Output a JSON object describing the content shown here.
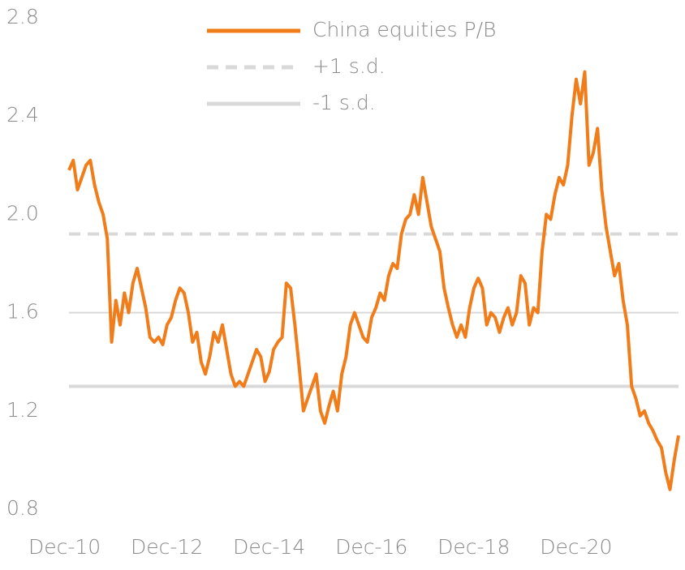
{
  "chart_data": {
    "type": "line",
    "categories": [
      "Dec-10",
      null,
      null,
      null,
      null,
      null,
      null,
      null,
      null,
      null,
      null,
      null,
      null,
      null,
      null,
      null,
      null,
      null,
      null,
      null,
      null,
      null,
      null,
      null,
      "Dec-12",
      null,
      null,
      null,
      null,
      null,
      null,
      null,
      null,
      null,
      null,
      null,
      null,
      null,
      null,
      null,
      null,
      null,
      null,
      null,
      null,
      null,
      null,
      null,
      "Dec-14",
      null,
      null,
      null,
      null,
      null,
      null,
      null,
      null,
      null,
      null,
      null,
      null,
      null,
      null,
      null,
      null,
      null,
      null,
      null,
      null,
      null,
      null,
      null,
      "Dec-16",
      null,
      null,
      null,
      null,
      null,
      null,
      null,
      null,
      null,
      null,
      null,
      null,
      null,
      null,
      null,
      null,
      null,
      null,
      null,
      null,
      null,
      null,
      null,
      "Dec-18",
      null,
      null,
      null,
      null,
      null,
      null,
      null,
      null,
      null,
      null,
      null,
      null,
      null,
      null,
      null,
      null,
      null,
      null,
      null,
      null,
      null,
      null,
      null,
      "Dec-20",
      null,
      null,
      null,
      null,
      null,
      null,
      null,
      null,
      null,
      null,
      null,
      null,
      null,
      null,
      null,
      null,
      null,
      null,
      null,
      null,
      null,
      null,
      null
    ],
    "series": [
      {
        "name": "China equities P/B",
        "color": "#f07c1a",
        "values": [
          2.18,
          2.22,
          2.1,
          2.15,
          2.2,
          2.22,
          2.12,
          2.05,
          2.0,
          1.9,
          1.48,
          1.65,
          1.55,
          1.68,
          1.6,
          1.72,
          1.78,
          1.7,
          1.62,
          1.5,
          1.48,
          1.5,
          1.47,
          1.55,
          1.58,
          1.65,
          1.7,
          1.68,
          1.6,
          1.48,
          1.52,
          1.4,
          1.35,
          1.42,
          1.52,
          1.48,
          1.55,
          1.45,
          1.35,
          1.3,
          1.32,
          1.3,
          1.35,
          1.4,
          1.45,
          1.42,
          1.32,
          1.36,
          1.45,
          1.48,
          1.5,
          1.72,
          1.7,
          1.55,
          1.38,
          1.2,
          1.25,
          1.3,
          1.35,
          1.2,
          1.15,
          1.22,
          1.28,
          1.2,
          1.35,
          1.42,
          1.55,
          1.6,
          1.55,
          1.5,
          1.48,
          1.58,
          1.62,
          1.68,
          1.65,
          1.75,
          1.8,
          1.78,
          1.92,
          1.98,
          2.0,
          2.08,
          2.0,
          2.15,
          2.05,
          1.95,
          1.9,
          1.85,
          1.7,
          1.62,
          1.55,
          1.5,
          1.55,
          1.5,
          1.62,
          1.7,
          1.74,
          1.7,
          1.55,
          1.6,
          1.58,
          1.52,
          1.58,
          1.62,
          1.55,
          1.6,
          1.75,
          1.72,
          1.55,
          1.62,
          1.6,
          1.85,
          2.0,
          1.98,
          2.08,
          2.15,
          2.12,
          2.2,
          2.4,
          2.55,
          2.45,
          2.58,
          2.2,
          2.25,
          2.35,
          2.1,
          1.95,
          1.85,
          1.75,
          1.8,
          1.65,
          1.55,
          1.3,
          1.25,
          1.18,
          1.2,
          1.15,
          1.12,
          1.08,
          1.05,
          0.95,
          0.88,
          1.0,
          1.1
        ]
      }
    ],
    "reference_lines": [
      {
        "name": "+1 s.d.",
        "value": 1.92,
        "color": "#d9d9d9",
        "dashed": true
      },
      {
        "name": "-1 s.d.",
        "value": 1.3,
        "color": "#d9d9d9",
        "dashed": false
      }
    ],
    "ylim": [
      0.8,
      2.8
    ],
    "yticks": [
      {
        "value": 0.8,
        "label": "0.8"
      },
      {
        "value": 1.2,
        "label": "1.2"
      },
      {
        "value": 1.6,
        "label": "1.6"
      },
      {
        "value": 2.0,
        "label": "2.0"
      },
      {
        "value": 2.4,
        "label": "2.4"
      },
      {
        "value": 2.8,
        "label": "2.8"
      }
    ],
    "x_axis_crossing": 1.6,
    "grid": false
  }
}
